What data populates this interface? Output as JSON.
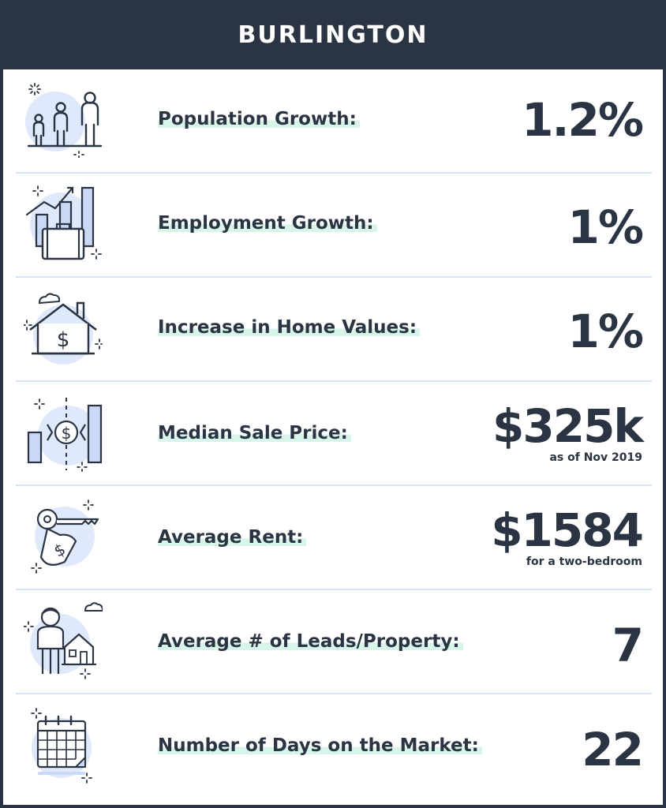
{
  "title": "BURLINGTON",
  "colors": {
    "dark": "#2a3442",
    "accent_blue": "#3b63b8",
    "light_blue": "#dfe9fb",
    "highlight": "#d8f5ea",
    "divider": "#d6e2f5"
  },
  "stats": [
    {
      "icon": "people-growth-icon",
      "label": "Population Growth:",
      "value": "1.2%",
      "note": ""
    },
    {
      "icon": "briefcase-chart-icon",
      "label": "Employment Growth:",
      "value": "1%",
      "note": ""
    },
    {
      "icon": "house-dollar-icon",
      "label": "Increase in Home Values:",
      "value": "1%",
      "note": ""
    },
    {
      "icon": "sale-price-chart-icon",
      "label": "Median Sale Price:",
      "value": "$325k",
      "note": "as of Nov 2019"
    },
    {
      "icon": "key-tag-icon",
      "label": "Average Rent:",
      "value": "$1584",
      "note": "for a two-bedroom"
    },
    {
      "icon": "agent-house-icon",
      "label": "Average # of Leads/Property:",
      "value": "7",
      "note": ""
    },
    {
      "icon": "calendar-icon",
      "label": "Number of Days on the Market:",
      "value": "22",
      "note": ""
    }
  ]
}
